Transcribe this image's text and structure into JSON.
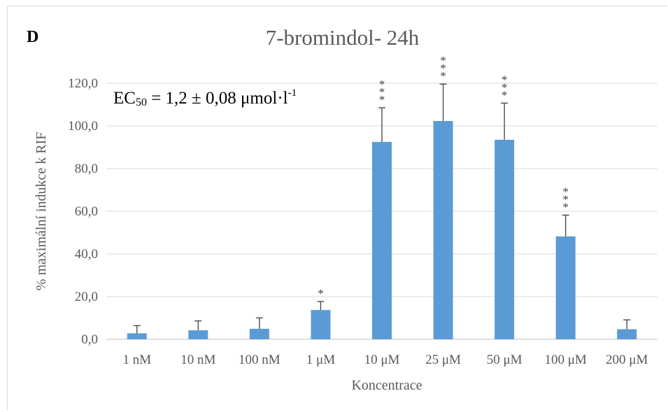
{
  "panel_letter": "D",
  "annotation": {
    "ec_prefix": "EC",
    "ec_sub": "50",
    "ec_value": " = 1,2 ± 0,08 μmol·l",
    "ec_sup": "-1"
  },
  "chart_data": {
    "type": "bar",
    "title": "7-bromindol- 24h",
    "xlabel": "Koncentrace",
    "ylabel": "% maximální indukce k RIF",
    "categories": [
      "1 nM",
      "10 nM",
      "100 nM",
      "1 μM",
      "10 μM",
      "25 μM",
      "50 μM",
      "100 μM",
      "200 μM"
    ],
    "values": [
      2.8,
      4.2,
      4.9,
      13.7,
      92.5,
      102.3,
      93.5,
      48.2,
      4.7
    ],
    "errors": [
      3.6,
      4.4,
      5.1,
      4.0,
      16.0,
      17.3,
      17.2,
      10.0,
      4.4
    ],
    "significance": [
      "",
      "",
      "",
      "*",
      "***",
      "***",
      "***",
      "***",
      ""
    ],
    "ylim": [
      0,
      120
    ],
    "yticks": [
      "0,0",
      "20,0",
      "40,0",
      "60,0",
      "80,0",
      "100,0",
      "120,0"
    ],
    "ytick_values": [
      0,
      20,
      40,
      60,
      80,
      100,
      120
    ],
    "grid": true,
    "bar_color": "#5b9bd5",
    "error_color": "#404040",
    "grid_color": "#d9d9d9"
  }
}
